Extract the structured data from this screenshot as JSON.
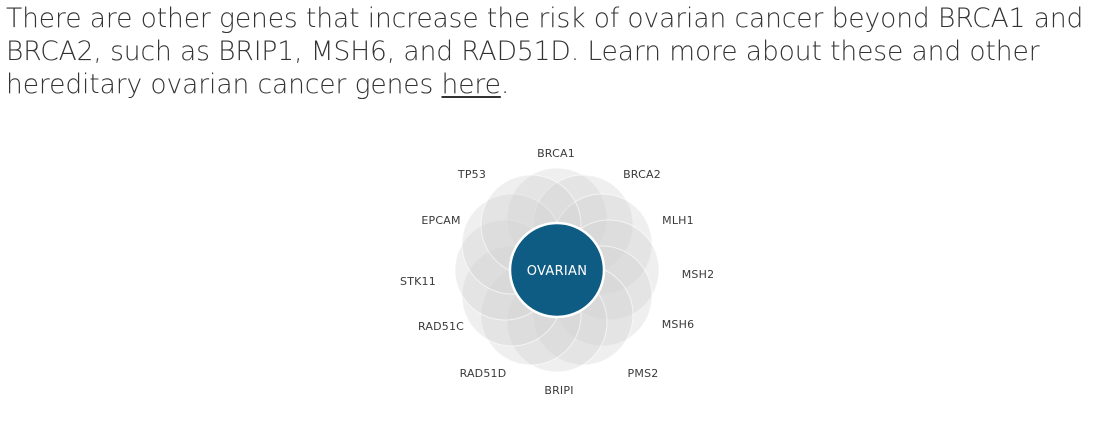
{
  "paragraph": {
    "text_before_link": "There are other genes that increase the risk of ovarian cancer beyond BRCA1 and BRCA2, such as BRIP1, MSH6, and RAD51D. Learn more about these and other hereditary ovarian cancer genes ",
    "link_text": "here",
    "text_after_link": "."
  },
  "diagram": {
    "center_label": "OVARIAN",
    "center_color": "#0e5c84",
    "petal_color": "#d0d0d0",
    "genes": [
      "BRCA1",
      "BRCA2",
      "MLH1",
      "MSH2",
      "MSH6",
      "PMS2",
      "BRIPI",
      "RAD51D",
      "RAD51C",
      "STK11",
      "EPCAM",
      "TP53"
    ]
  }
}
